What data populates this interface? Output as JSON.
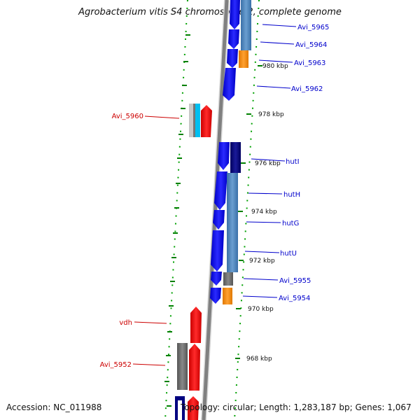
{
  "title": "Agrobacterium vitis S4 chromosome 2, complete genome",
  "footer": {
    "accession": "Accession: NC_011988",
    "topology": "Topology: circular; Length: 1,283,187 bp; Genes: 1,067"
  },
  "colors": {
    "reverse_strand": "#0000ee",
    "forward_strand": "#ee0000",
    "cds_steelblue": "#4682b4",
    "cds_navy": "#000080",
    "cds_gray": "#707070",
    "cds_orange": "#ff8c00",
    "cds_cyan": "#00c0f0",
    "cds_lightgray": "#c0c0c0",
    "tick_green": "#008000",
    "backbone": "#808080"
  },
  "scale_labels": [
    "980 kbp",
    "978 kbp",
    "976 kbp",
    "974 kbp",
    "972 kbp",
    "970 kbp",
    "968 kbp"
  ],
  "gene_labels_reverse": [
    "Avi_5965",
    "Avi_5964",
    "Avi_5963",
    "Avi_5962",
    "hutI",
    "hutH",
    "hutG",
    "hutU",
    "Avi_5955",
    "Avi_5954"
  ],
  "gene_labels_forward": [
    "Avi_5960",
    "vdh",
    "Avi_5952"
  ]
}
